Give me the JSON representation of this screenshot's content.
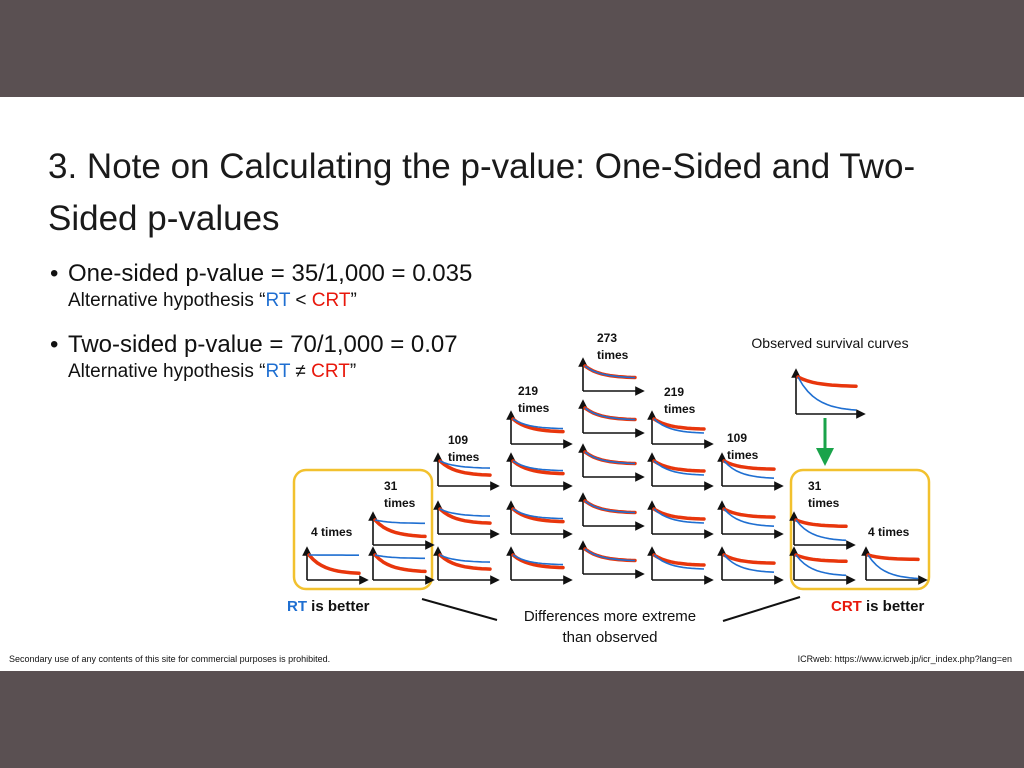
{
  "title": "3. Note on Calculating the p-value: One-Sided and Two-Sided p-values",
  "bullets": [
    {
      "main": "One-sided p-value = 35/1,000 = 0.035",
      "sub_prefix": "Alternative hypothesis “",
      "sub_rt": "RT",
      "sub_op": " < ",
      "sub_crt": "CRT",
      "sub_suffix": "”"
    },
    {
      "main": "Two-sided p-value = 70/1,000 = 0.07",
      "sub_prefix": "Alternative hypothesis “",
      "sub_rt": "RT",
      "sub_op": " ≠ ",
      "sub_crt": "CRT",
      "sub_suffix": "”"
    }
  ],
  "diagram": {
    "observed_label": "Observed survival curves",
    "columns": [
      {
        "label": "4 times",
        "count": 4
      },
      {
        "label": "31 times",
        "count": 31
      },
      {
        "label": "109 times",
        "count": 109
      },
      {
        "label": "219 times",
        "count": 219
      },
      {
        "label": "273 times",
        "count": 273
      },
      {
        "label": "219 times",
        "count": 219
      },
      {
        "label": "109 times",
        "count": 109
      },
      {
        "label": "31 times",
        "count": 31
      },
      {
        "label": "4 times",
        "count": 4
      }
    ],
    "rt_better_label": "RT",
    "crt_better_label": "CRT",
    "is_better": " is better",
    "extreme_label_line1": "Differences more extreme",
    "extreme_label_line2": "than observed",
    "colors": {
      "rt": "#1f6fd1",
      "crt": "#e8360c",
      "highlight_box": "#f2c12e",
      "arrow": "#1aa34a"
    }
  },
  "footer": {
    "left": "Secondary use of any contents of this site for commercial purposes is prohibited.",
    "right": "ICRweb: https://www.icrweb.jp/icr_index.php?lang=en"
  }
}
